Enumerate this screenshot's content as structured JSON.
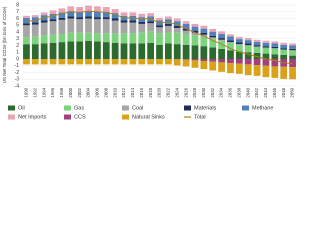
{
  "chart_data": {
    "type": "bar",
    "stacked": true,
    "y_label": "US Net Total CO2e (bn tons of CO2e)",
    "categories": [
      "1990",
      "1992",
      "1994",
      "1996",
      "1998",
      "2000",
      "2002",
      "2004",
      "2006",
      "2008",
      "2010",
      "2012",
      "2014",
      "2016",
      "2018",
      "2020",
      "2022",
      "2024",
      "2026",
      "2028",
      "2030",
      "2032",
      "2034",
      "2036",
      "2038",
      "2040",
      "2042",
      "2044",
      "2046",
      "2048",
      "2050"
    ],
    "ylim": [
      -4,
      8
    ],
    "yticks": [
      -4,
      -3,
      -2,
      -1,
      0,
      1,
      2,
      3,
      4,
      5,
      6,
      7,
      8
    ],
    "grid": true,
    "legend": "bottom",
    "series": [
      {
        "name": "Oil",
        "color": "#2d6a2d",
        "values": [
          2.2,
          2.2,
          2.3,
          2.4,
          2.5,
          2.6,
          2.6,
          2.7,
          2.6,
          2.5,
          2.4,
          2.3,
          2.3,
          2.3,
          2.4,
          2.1,
          2.3,
          2.2,
          2.1,
          2.0,
          1.9,
          1.7,
          1.5,
          1.3,
          1.1,
          1.0,
          0.9,
          0.8,
          0.7,
          0.6,
          0.5
        ]
      },
      {
        "name": "Gas",
        "color": "#7dd37d",
        "values": [
          1.0,
          1.1,
          1.2,
          1.2,
          1.2,
          1.3,
          1.3,
          1.2,
          1.2,
          1.3,
          1.4,
          1.5,
          1.5,
          1.6,
          1.7,
          1.7,
          1.7,
          1.7,
          1.6,
          1.5,
          1.4,
          1.3,
          1.2,
          1.1,
          1.0,
          1.0,
          0.9,
          0.9,
          0.9,
          0.8,
          0.8
        ]
      },
      {
        "name": "Coal",
        "color": "#a6a6a6",
        "values": [
          1.8,
          1.8,
          1.9,
          2.0,
          2.1,
          2.1,
          2.0,
          2.1,
          2.1,
          2.1,
          1.9,
          1.6,
          1.6,
          1.3,
          1.2,
          0.9,
          0.9,
          0.7,
          0.5,
          0.4,
          0.3,
          0.2,
          0.15,
          0.1,
          0.1,
          0.05,
          0.05,
          0,
          0,
          0,
          0
        ]
      },
      {
        "name": "Materials",
        "color": "#1f2d5a",
        "values": [
          0.3,
          0.3,
          0.3,
          0.3,
          0.3,
          0.3,
          0.3,
          0.3,
          0.3,
          0.3,
          0.3,
          0.3,
          0.3,
          0.3,
          0.3,
          0.3,
          0.3,
          0.3,
          0.3,
          0.3,
          0.3,
          0.25,
          0.25,
          0.25,
          0.25,
          0.25,
          0.2,
          0.2,
          0.2,
          0.2,
          0.2
        ]
      },
      {
        "name": "Methane",
        "color": "#4f81bd",
        "values": [
          0.8,
          0.8,
          0.8,
          0.8,
          0.8,
          0.8,
          0.8,
          0.8,
          0.8,
          0.8,
          0.8,
          0.7,
          0.7,
          0.7,
          0.7,
          0.7,
          0.7,
          0.7,
          0.7,
          0.6,
          0.6,
          0.6,
          0.6,
          0.6,
          0.5,
          0.5,
          0.5,
          0.5,
          0.5,
          0.5,
          0.5
        ]
      },
      {
        "name": "Net Imports",
        "color": "#e9a3b5",
        "values": [
          0.3,
          0.3,
          0.4,
          0.5,
          0.6,
          0.7,
          0.7,
          0.8,
          0.8,
          0.7,
          0.6,
          0.5,
          0.5,
          0.5,
          0.5,
          0.4,
          0.4,
          0.4,
          0.4,
          0.4,
          0.4,
          0.4,
          0.4,
          0.3,
          0.3,
          0.3,
          0.3,
          0.3,
          0.3,
          0.3,
          0.3
        ]
      },
      {
        "name": "CCS",
        "color": "#a3407c",
        "values": [
          0,
          0,
          0,
          0,
          0,
          0,
          0,
          0,
          0,
          0,
          0,
          0,
          0,
          0,
          0,
          0,
          0,
          -0.05,
          -0.1,
          -0.2,
          -0.3,
          -0.4,
          -0.5,
          -0.6,
          -0.7,
          -0.8,
          -0.9,
          -1.0,
          -1.1,
          -1.15,
          -1.2
        ]
      },
      {
        "name": "Natural Sinks",
        "color": "#d9a21a",
        "values": [
          -0.8,
          -0.8,
          -0.8,
          -0.8,
          -0.8,
          -0.8,
          -0.8,
          -0.8,
          -0.8,
          -0.8,
          -0.8,
          -0.8,
          -0.8,
          -0.8,
          -0.8,
          -0.8,
          -0.8,
          -0.9,
          -1.0,
          -1.1,
          -1.2,
          -1.3,
          -1.4,
          -1.5,
          -1.5,
          -1.6,
          -1.6,
          -1.7,
          -1.7,
          -1.8,
          -1.8
        ]
      },
      {
        "name": "Total",
        "type": "line",
        "color": "#a8801c",
        "values": [
          5.6,
          5.7,
          6.1,
          6.4,
          6.7,
          7.0,
          6.9,
          7.1,
          7.0,
          6.9,
          6.6,
          6.1,
          6.1,
          5.9,
          6.0,
          5.3,
          5.5,
          5.05,
          4.5,
          3.9,
          3.4,
          2.75,
          2.2,
          1.55,
          1.05,
          0.7,
          0.35,
          0.0,
          -0.2,
          -0.55,
          -0.7
        ]
      }
    ]
  }
}
